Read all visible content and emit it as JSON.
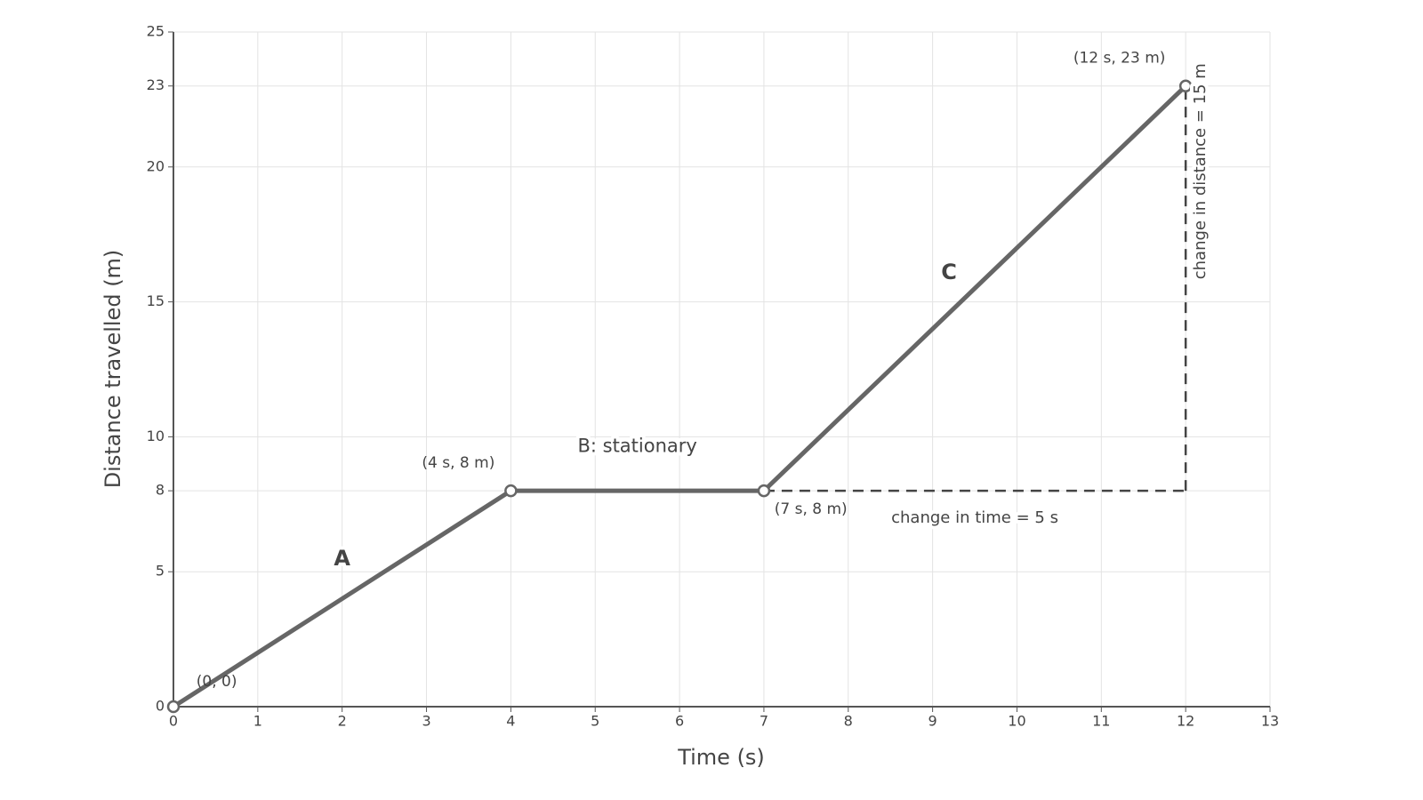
{
  "chart_data": {
    "type": "line",
    "x_label": "Time (s)",
    "y_label": "Distance travelled (m)",
    "x": [
      0,
      4,
      7,
      12
    ],
    "values": [
      0,
      8,
      8,
      23
    ],
    "color": "#666666",
    "xlim": [
      0,
      13
    ],
    "ylim": [
      0,
      25
    ],
    "xticks": [
      0,
      1,
      2,
      3,
      4,
      5,
      6,
      7,
      8,
      9,
      10,
      11,
      12,
      13
    ],
    "yticks": [
      0,
      5,
      8,
      10,
      15,
      20,
      23,
      25
    ],
    "grid": true,
    "point_labels": [
      "(0, 0)",
      "(4 s, 8 m)",
      "(7 s, 8 m)",
      "(12 s, 23 m)"
    ],
    "segment_labels": [
      "A",
      "B: stationary",
      "C"
    ],
    "change_labels": {
      "time": "change in time = 5 s",
      "distance": "change in distance = 15 m"
    }
  }
}
